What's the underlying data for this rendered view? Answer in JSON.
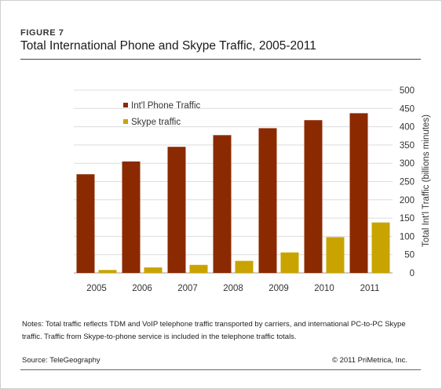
{
  "figure_label": "FIGURE 7",
  "title": "Total International Phone and Skype Traffic, 2005-2011",
  "notes": "Notes: Total traffic reflects TDM and VoIP telephone traffic transported by carriers, and international PC-to-PC Skype traffic. Traffic from Skype-to-phone service is included in the telephone traffic totals.",
  "source": "Source: TeleGeography",
  "copyright": "© 2011 PriMetrica, Inc.",
  "chart_data": {
    "type": "bar",
    "categories": [
      "2005",
      "2006",
      "2007",
      "2008",
      "2009",
      "2010",
      "2011"
    ],
    "series": [
      {
        "name": "Int'l Phone Traffic",
        "color": "#8b2a00",
        "values": [
          270,
          305,
          345,
          377,
          396,
          418,
          437
        ]
      },
      {
        "name": "Skype traffic",
        "color": "#c9a400",
        "values": [
          8,
          15,
          22,
          33,
          56,
          98,
          138
        ]
      }
    ],
    "ylabel": "Total Int'l Traffic (billions minutes)",
    "xlabel": "",
    "ylim": [
      0,
      500
    ],
    "yticks": [
      "0",
      "50",
      "100",
      "150",
      "200",
      "250",
      "300",
      "350",
      "400",
      "450",
      "500"
    ],
    "y_axis_side": "right",
    "grid": true,
    "legend_position": "top-left"
  }
}
